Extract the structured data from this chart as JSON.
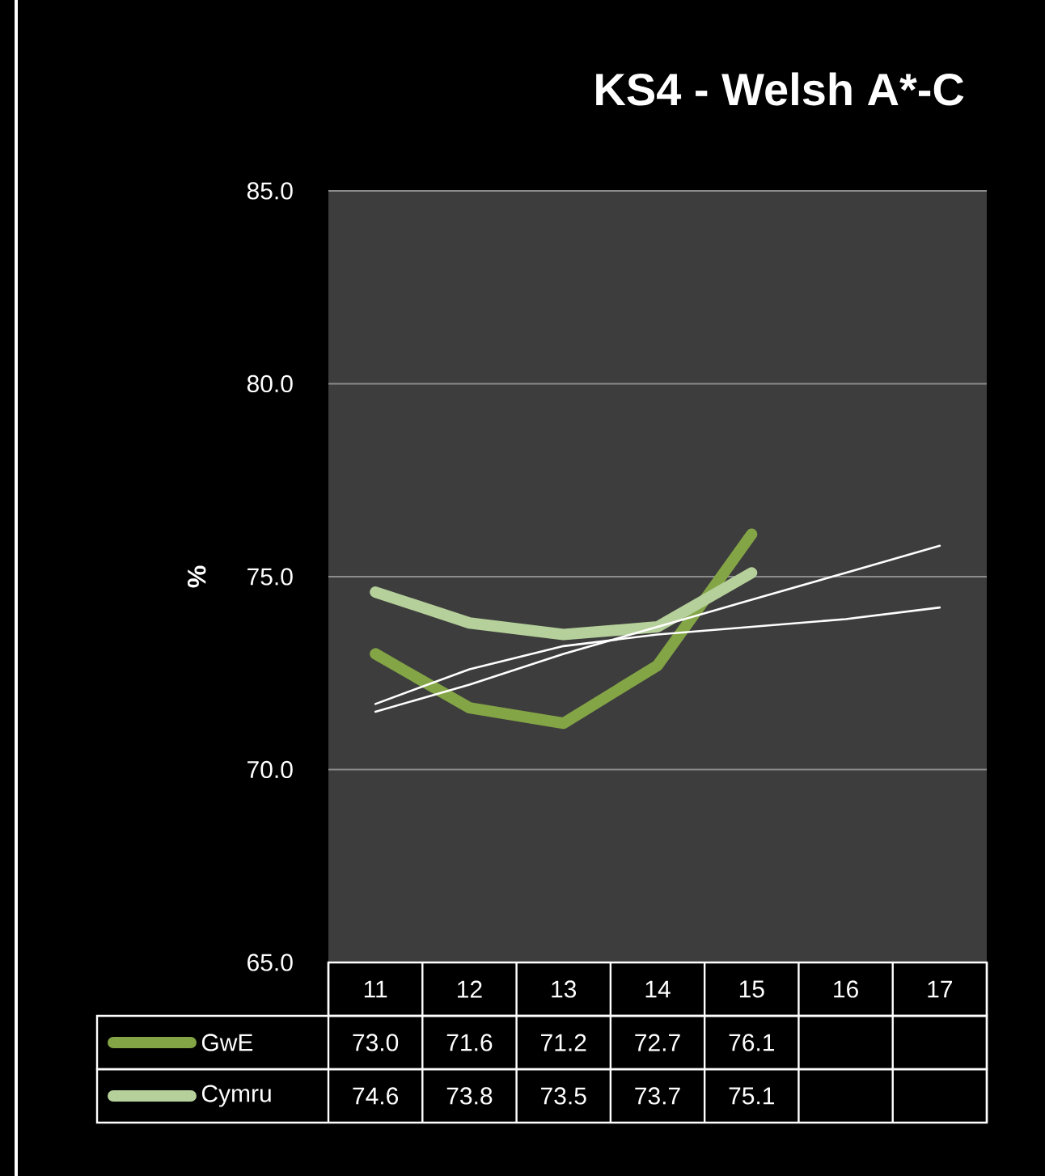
{
  "chart_data": {
    "type": "line",
    "title": "KS4 - Welsh A*-C",
    "ylabel": "%",
    "categories": [
      "11",
      "12",
      "13",
      "14",
      "15",
      "16",
      "17"
    ],
    "series": [
      {
        "name": "GwE",
        "color": "#84a546",
        "values": [
          73.0,
          71.6,
          71.2,
          72.7,
          76.1,
          null,
          null
        ],
        "value_labels": [
          "73.0",
          "71.6",
          "71.2",
          "72.7",
          "76.1",
          null,
          null
        ]
      },
      {
        "name": "Cymru",
        "color": "#b5d09a",
        "values": [
          74.6,
          73.8,
          73.5,
          73.7,
          75.1,
          null,
          null
        ],
        "value_labels": [
          "74.6",
          "73.8",
          "73.5",
          "73.7",
          "75.1",
          null,
          null
        ]
      },
      {
        "type": "line",
        "color": "#ffffff",
        "values": [
          71.5,
          72.2,
          73.0,
          73.7,
          74.4,
          75.1,
          75.8
        ]
      },
      {
        "type": "line",
        "color": "#ffffff",
        "values": [
          71.7,
          72.6,
          73.2,
          73.5,
          73.7,
          73.9,
          74.2
        ]
      }
    ],
    "ylim": [
      65,
      85
    ],
    "yticks": [
      {
        "value": 65,
        "label": "65.0"
      },
      {
        "value": 70,
        "label": "70.0"
      },
      {
        "value": 75,
        "label": "75.0"
      },
      {
        "value": 80,
        "label": "80.0"
      },
      {
        "value": 85,
        "label": "85.0"
      }
    ],
    "grid": "y",
    "legend": "bottom",
    "marker": "none"
  }
}
